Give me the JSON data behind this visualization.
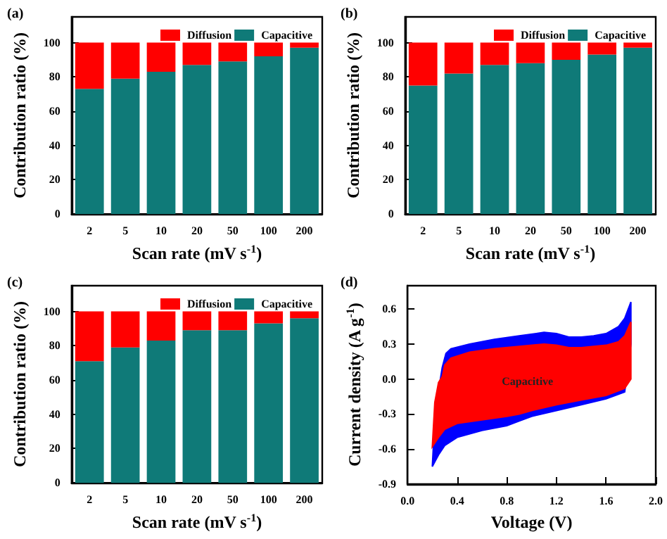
{
  "chart_data": [
    {
      "type": "bar",
      "title": "(a)",
      "xlabel": "Scan rate (mV s$^{-1}$)",
      "ylabel": "Contribution ratio (%)",
      "categories": [
        "2",
        "5",
        "10",
        "20",
        "50",
        "100",
        "200"
      ],
      "stacked": true,
      "legend": "top right",
      "ylim": [
        0,
        115
      ],
      "yticks": [
        0,
        20,
        40,
        60,
        80,
        100
      ],
      "series": [
        {
          "name": "Capacitive",
          "color": "#0f7a78",
          "values": [
            73,
            79,
            83,
            87,
            89,
            92,
            97
          ]
        },
        {
          "name": "Diffusion",
          "color": "#ff0000",
          "values": [
            27,
            21,
            17,
            13,
            11,
            8,
            3
          ]
        }
      ]
    },
    {
      "type": "bar",
      "title": "(b)",
      "xlabel": "Scan rate (mV s$^{-1}$)",
      "ylabel": "Contribution ratio (%)",
      "categories": [
        "2",
        "5",
        "10",
        "20",
        "50",
        "100",
        "200"
      ],
      "stacked": true,
      "legend": "top right",
      "ylim": [
        0,
        115
      ],
      "yticks": [
        0,
        20,
        40,
        60,
        80,
        100
      ],
      "series": [
        {
          "name": "Capacitive",
          "color": "#0f7a78",
          "values": [
            75,
            82,
            87,
            88,
            90,
            93,
            97
          ]
        },
        {
          "name": "Diffusion",
          "color": "#ff0000",
          "values": [
            25,
            18,
            13,
            12,
            10,
            7,
            3
          ]
        }
      ]
    },
    {
      "type": "bar",
      "title": "(c)",
      "xlabel": "Scan rate (mV s$^{-1}$)",
      "ylabel": "Contribution ratio (%)",
      "categories": [
        "2",
        "5",
        "10",
        "20",
        "50",
        "100",
        "200"
      ],
      "stacked": true,
      "legend": "top right",
      "ylim": [
        0,
        115
      ],
      "yticks": [
        0,
        20,
        40,
        60,
        80,
        100
      ],
      "series": [
        {
          "name": "Capacitive",
          "color": "#0f7a78",
          "values": [
            71,
            79,
            83,
            89,
            89,
            93,
            96
          ]
        },
        {
          "name": "Diffusion",
          "color": "#ff0000",
          "values": [
            29,
            21,
            17,
            11,
            11,
            7,
            4
          ]
        }
      ]
    },
    {
      "type": "area",
      "title": "(d)",
      "xlabel": "Voltage (V)",
      "ylabel": "Current density (A g$^{-1}$)",
      "xlim": [
        0,
        2.0
      ],
      "xticks": [
        {
          "value": 0,
          "label": "0.0"
        },
        0.4,
        0.8,
        1.2,
        1.6,
        {
          "value": 2.0,
          "label": "2.0"
        }
      ],
      "ylim": [
        -0.9,
        0.8
      ],
      "yticks": [
        -0.9,
        -0.6,
        -0.3,
        {
          "value": 0,
          "label": "0.0"
        },
        0.3,
        0.6
      ],
      "series": [
        {
          "color": "#0000ff",
          "x": [
            0.2,
            0.21,
            0.25,
            0.28,
            0.31,
            0.35,
            0.5,
            0.7,
            0.9,
            1.1,
            1.2,
            1.3,
            1.4,
            1.5,
            1.6,
            1.7,
            1.75,
            1.8,
            1.8,
            1.75,
            1.7,
            1.6,
            1.4,
            1.2,
            1.0,
            0.9,
            0.8,
            0.6,
            0.4,
            0.3,
            0.25,
            0.2
          ],
          "values": [
            -0.75,
            -0.55,
            -0.1,
            0.1,
            0.22,
            0.26,
            0.3,
            0.34,
            0.37,
            0.4,
            0.39,
            0.36,
            0.36,
            0.37,
            0.39,
            0.45,
            0.52,
            0.66,
            0.3,
            -0.11,
            -0.13,
            -0.17,
            -0.22,
            -0.27,
            -0.32,
            -0.36,
            -0.4,
            -0.44,
            -0.5,
            -0.57,
            -0.65,
            -0.75
          ]
        },
        {
          "name": "Capacitive",
          "color": "#ff0000",
          "x": [
            0.2,
            0.22,
            0.25,
            0.28,
            0.3,
            0.35,
            0.5,
            0.7,
            0.9,
            1.1,
            1.2,
            1.3,
            1.4,
            1.5,
            1.6,
            1.7,
            1.75,
            1.8,
            1.8,
            1.75,
            1.7,
            1.6,
            1.4,
            1.2,
            1.0,
            0.9,
            0.8,
            0.6,
            0.4,
            0.3,
            0.25,
            0.2
          ],
          "values": [
            -0.58,
            -0.2,
            -0.03,
            0.02,
            0.12,
            0.18,
            0.23,
            0.26,
            0.28,
            0.3,
            0.29,
            0.27,
            0.27,
            0.28,
            0.29,
            0.32,
            0.37,
            0.49,
            0.0,
            -0.08,
            -0.1,
            -0.14,
            -0.18,
            -0.22,
            -0.27,
            -0.3,
            -0.32,
            -0.35,
            -0.38,
            -0.43,
            -0.5,
            -0.58
          ]
        }
      ]
    }
  ]
}
